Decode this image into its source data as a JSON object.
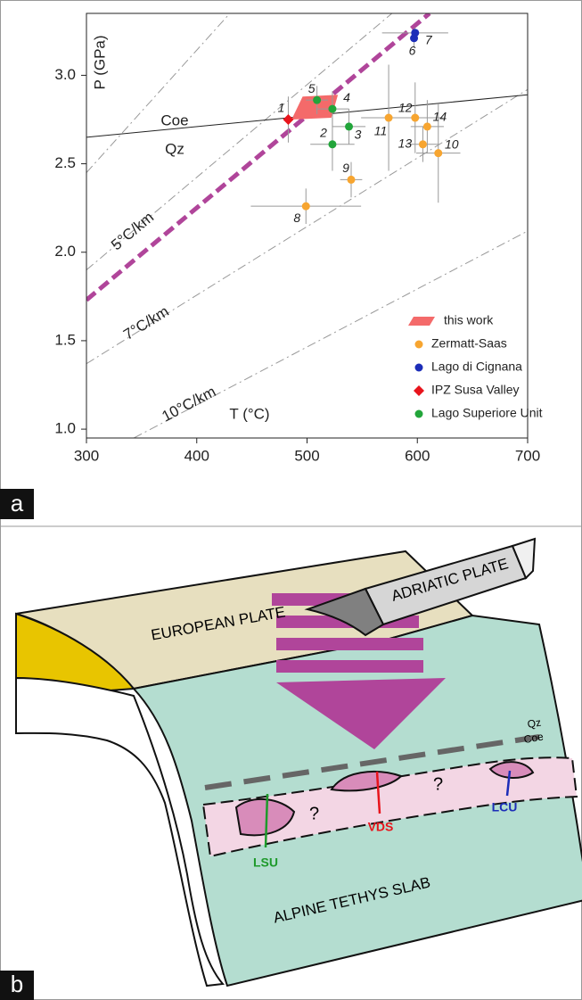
{
  "chart_data": {
    "type": "scatter",
    "xlabel": "T (°C)",
    "ylabel": "P (GPa)",
    "xlim": [
      300,
      700
    ],
    "ylim": [
      0.95,
      3.35
    ],
    "xticks": [
      300,
      400,
      500,
      600,
      700
    ],
    "yticks": [
      {
        "value": 1,
        "label": "1.0"
      },
      1.5,
      {
        "value": 2,
        "label": "2.0"
      },
      2.5,
      {
        "value": 3,
        "label": "3.0"
      }
    ],
    "field": {
      "name": "this work",
      "color": "#f46a6a",
      "x": [
        486,
        522,
        528,
        496
      ],
      "y": [
        2.75,
        2.76,
        2.89,
        2.88
      ]
    },
    "series": [
      {
        "name": "Zermatt-Saas",
        "color": "#f7a530",
        "marker": "circle",
        "labels": [
          "8",
          "9",
          "10",
          "11",
          "12",
          "13",
          "14"
        ],
        "x": [
          499,
          540,
          619,
          574,
          598,
          605,
          609
        ],
        "y": [
          2.26,
          2.41,
          2.56,
          2.76,
          2.76,
          2.61,
          2.71
        ],
        "xerr": [
          50,
          10,
          20,
          25,
          25,
          15,
          15
        ],
        "yerr": [
          0.1,
          0.1,
          0.28,
          0.3,
          0.2,
          0.1,
          0.15
        ]
      },
      {
        "name": "Lago di Cignana",
        "color": "#1c2db8",
        "marker": "circle",
        "labels": [
          "6",
          "7"
        ],
        "x": [
          597,
          598
        ],
        "y": [
          3.21,
          3.24
        ],
        "xerr": [
          0,
          30
        ],
        "yerr": [
          0.05,
          0.03
        ]
      },
      {
        "name": "IPZ Susa Valley",
        "color": "#e8141c",
        "marker": "diamond",
        "labels": [
          "1"
        ],
        "x": [
          483
        ],
        "y": [
          2.75
        ],
        "xerr": [
          0
        ],
        "yerr": [
          0.13
        ]
      },
      {
        "name": "Lago Superiore Unit",
        "color": "#22a53a",
        "marker": "circle",
        "labels": [
          "5",
          "4",
          "3",
          "2"
        ],
        "x": [
          509,
          523,
          538,
          523
        ],
        "y": [
          2.86,
          2.81,
          2.71,
          2.61
        ],
        "xerr": [
          10,
          15,
          15,
          20
        ],
        "yerr": [
          0.08,
          0.1,
          0.1,
          0.15
        ]
      }
    ],
    "reaction": {
      "labels": [
        "Coe",
        "Qz"
      ],
      "x": [
        300,
        700
      ],
      "y": [
        2.65,
        2.89
      ]
    },
    "trend": {
      "color": "#b0459a",
      "x": [
        300,
        611
      ],
      "y": [
        1.73,
        3.35
      ]
    },
    "geotherms": [
      {
        "x": [
          300,
          430
        ],
        "y": [
          2.45,
          3.35
        ]
      },
      {
        "label": "5°C/km",
        "x": [
          300,
          577
        ],
        "y": [
          1.9,
          3.35
        ]
      },
      {
        "label": "7°C/km",
        "x": [
          300,
          700
        ],
        "y": [
          1.37,
          2.92
        ]
      },
      {
        "label": "10°C/km",
        "x": [
          343,
          700
        ],
        "y": [
          0.95,
          2.12
        ]
      }
    ]
  },
  "panels": {
    "a": "a",
    "b": "b"
  },
  "diagram": {
    "european_plate": "EUROPEAN PLATE",
    "adriatic_plate": "ADRIATIC PLATE",
    "qz": "Qz",
    "coe": "Coe",
    "question_1": "?",
    "question_2": "?",
    "lsu": "LSU",
    "vds": "VDS",
    "lcu": "LCU",
    "slab": "ALPINE TETHYS SLAB"
  }
}
